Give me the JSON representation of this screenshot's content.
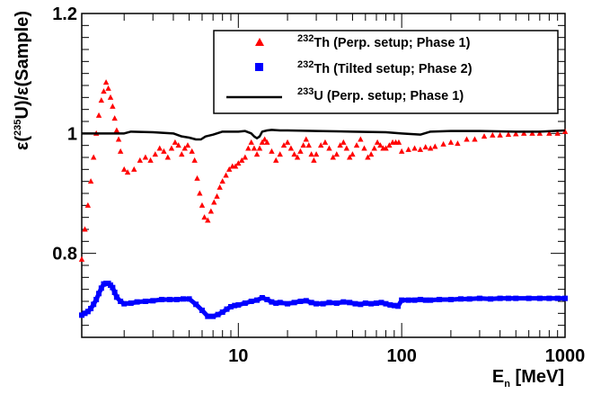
{
  "chart_data": {
    "type": "scatter",
    "title": "",
    "xlabel": {
      "main": "E",
      "sub": "n",
      "rest": " [MeV]"
    },
    "ylabel": {
      "pre": "ε(",
      "sup": "235",
      "post": "U)/ε(Sample)"
    },
    "xscale": "log",
    "xlim": [
      1.1,
      1000
    ],
    "ylim": [
      0.66,
      1.2
    ],
    "grid": false,
    "legend_position": "top-right",
    "x_ticks": [
      {
        "value": 10,
        "label": "10"
      },
      {
        "value": 100,
        "label": "100"
      },
      {
        "value": 1000,
        "label": "1000"
      }
    ],
    "y_ticks": [
      {
        "value": 0.8,
        "label": "0.8"
      },
      {
        "value": 1.0,
        "label": "1"
      },
      {
        "value": 1.2,
        "label": "1.2"
      }
    ],
    "series": [
      {
        "name_sup": "232",
        "name": "Th (Perp. setup;  Phase 1)",
        "marker": "triangle",
        "color": "#ff0000",
        "x": [
          1.1,
          1.15,
          1.2,
          1.25,
          1.3,
          1.35,
          1.4,
          1.45,
          1.5,
          1.55,
          1.6,
          1.65,
          1.7,
          1.75,
          1.8,
          1.85,
          1.9,
          2.0,
          2.1,
          2.3,
          2.5,
          2.7,
          2.9,
          3.1,
          3.3,
          3.5,
          3.7,
          3.9,
          4.1,
          4.3,
          4.5,
          4.7,
          4.9,
          5.2,
          5.4,
          5.6,
          5.8,
          6.0,
          6.2,
          6.5,
          6.8,
          7.1,
          7.4,
          7.7,
          8.0,
          8.4,
          8.8,
          9.2,
          9.6,
          10,
          10.5,
          11,
          11.5,
          12,
          12.5,
          13,
          13.5,
          14,
          14.5,
          15,
          16,
          17,
          18,
          19,
          20,
          21,
          22,
          23,
          24,
          25,
          26,
          27,
          28,
          29,
          30,
          32,
          34,
          36,
          38,
          40,
          42,
          44,
          46,
          48,
          50,
          53,
          56,
          59,
          62,
          65,
          68,
          71,
          74,
          77,
          80,
          84,
          88,
          92,
          96,
          100,
          110,
          120,
          130,
          140,
          150,
          160,
          180,
          200,
          220,
          250,
          280,
          320,
          360,
          400,
          450,
          500,
          560,
          630,
          700,
          800,
          900,
          1000
        ],
        "y": [
          0.79,
          0.84,
          0.88,
          0.92,
          0.96,
          1.0,
          1.03,
          1.055,
          1.07,
          1.085,
          1.075,
          1.06,
          1.045,
          1.025,
          1.005,
          0.99,
          0.97,
          0.94,
          0.935,
          0.94,
          0.955,
          0.96,
          0.955,
          0.965,
          0.975,
          0.97,
          0.96,
          0.975,
          0.985,
          0.98,
          0.965,
          0.975,
          0.98,
          0.97,
          0.955,
          0.925,
          0.9,
          0.88,
          0.86,
          0.855,
          0.87,
          0.885,
          0.895,
          0.91,
          0.92,
          0.93,
          0.94,
          0.945,
          0.945,
          0.95,
          0.955,
          0.96,
          0.975,
          0.985,
          0.975,
          0.965,
          0.975,
          0.985,
          0.99,
          0.985,
          0.97,
          0.955,
          0.965,
          0.98,
          0.985,
          0.975,
          0.965,
          0.96,
          0.97,
          0.98,
          0.99,
          0.98,
          0.965,
          0.955,
          0.965,
          0.98,
          0.985,
          0.975,
          0.96,
          0.965,
          0.98,
          0.985,
          0.975,
          0.96,
          0.965,
          0.98,
          0.99,
          0.975,
          0.96,
          0.965,
          0.975,
          0.985,
          0.98,
          0.975,
          0.975,
          0.98,
          0.985,
          0.985,
          0.985,
          0.97,
          0.973,
          0.975,
          0.973,
          0.977,
          0.975,
          0.978,
          0.982,
          0.985,
          0.983,
          0.99,
          0.99,
          0.995,
          0.997,
          0.997,
          0.998,
          0.999,
          1.0,
          1.0,
          1.0,
          1.0,
          1.0,
          1.003
        ]
      },
      {
        "name_sup": "232",
        "name": "Th (Tilted setup; Phase 2)",
        "marker": "square",
        "color": "#0000ff",
        "x": [
          1.1,
          1.15,
          1.2,
          1.25,
          1.3,
          1.35,
          1.4,
          1.45,
          1.5,
          1.55,
          1.6,
          1.65,
          1.7,
          1.75,
          1.8,
          1.9,
          2.0,
          2.2,
          2.4,
          2.7,
          3.0,
          3.4,
          3.8,
          4.2,
          4.6,
          5.0,
          5.5,
          6.0,
          6.5,
          7.0,
          7.5,
          8.0,
          8.5,
          9.0,
          9.5,
          10,
          11,
          12,
          13,
          14,
          15,
          16,
          17,
          18,
          20,
          22,
          24,
          26,
          28,
          30,
          33,
          36,
          40,
          44,
          48,
          52,
          56,
          60,
          65,
          70,
          75,
          80,
          85,
          90,
          95,
          100,
          110,
          120,
          130,
          140,
          150,
          170,
          200,
          230,
          260,
          300,
          350,
          400,
          450,
          500,
          600,
          700,
          800,
          900,
          1000
        ],
        "y": [
          0.697,
          0.7,
          0.703,
          0.708,
          0.715,
          0.723,
          0.733,
          0.742,
          0.749,
          0.75,
          0.75,
          0.747,
          0.743,
          0.735,
          0.727,
          0.72,
          0.716,
          0.717,
          0.719,
          0.72,
          0.721,
          0.723,
          0.723,
          0.723,
          0.724,
          0.724,
          0.715,
          0.705,
          0.695,
          0.695,
          0.698,
          0.702,
          0.707,
          0.711,
          0.713,
          0.714,
          0.717,
          0.72,
          0.722,
          0.726,
          0.723,
          0.719,
          0.717,
          0.718,
          0.716,
          0.718,
          0.72,
          0.721,
          0.718,
          0.716,
          0.716,
          0.718,
          0.717,
          0.719,
          0.718,
          0.716,
          0.715,
          0.717,
          0.716,
          0.717,
          0.718,
          0.716,
          0.714,
          0.713,
          0.712,
          0.722,
          0.722,
          0.722,
          0.723,
          0.722,
          0.722,
          0.723,
          0.723,
          0.724,
          0.724,
          0.725,
          0.724,
          0.725,
          0.725,
          0.725,
          0.725,
          0.725,
          0.725,
          0.725,
          0.725
        ]
      },
      {
        "name_sup": "233",
        "name": "U  (Perp. setup;  Phase 1)",
        "marker": "line",
        "color": "#000000",
        "x": [
          1.1,
          2.0,
          2.2,
          3.0,
          4.0,
          4.5,
          5.0,
          5.5,
          5.9,
          6.3,
          7.0,
          8.0,
          9.0,
          10,
          11,
          12,
          12.5,
          13,
          13.5,
          14,
          15,
          16,
          18,
          20,
          30,
          50,
          80,
          100,
          130,
          150,
          200,
          300,
          500,
          700,
          1000
        ],
        "y": [
          1.0,
          1.0,
          1.003,
          1.002,
          1.0,
          0.995,
          0.993,
          0.99,
          0.99,
          0.995,
          0.998,
          1.003,
          1.003,
          1.003,
          1.004,
          1.0,
          0.995,
          0.992,
          0.995,
          1.003,
          1.005,
          1.006,
          1.005,
          1.005,
          1.004,
          1.003,
          1.002,
          1.0,
          0.998,
          1.003,
          1.004,
          1.004,
          1.003,
          1.003,
          1.005
        ]
      }
    ]
  }
}
